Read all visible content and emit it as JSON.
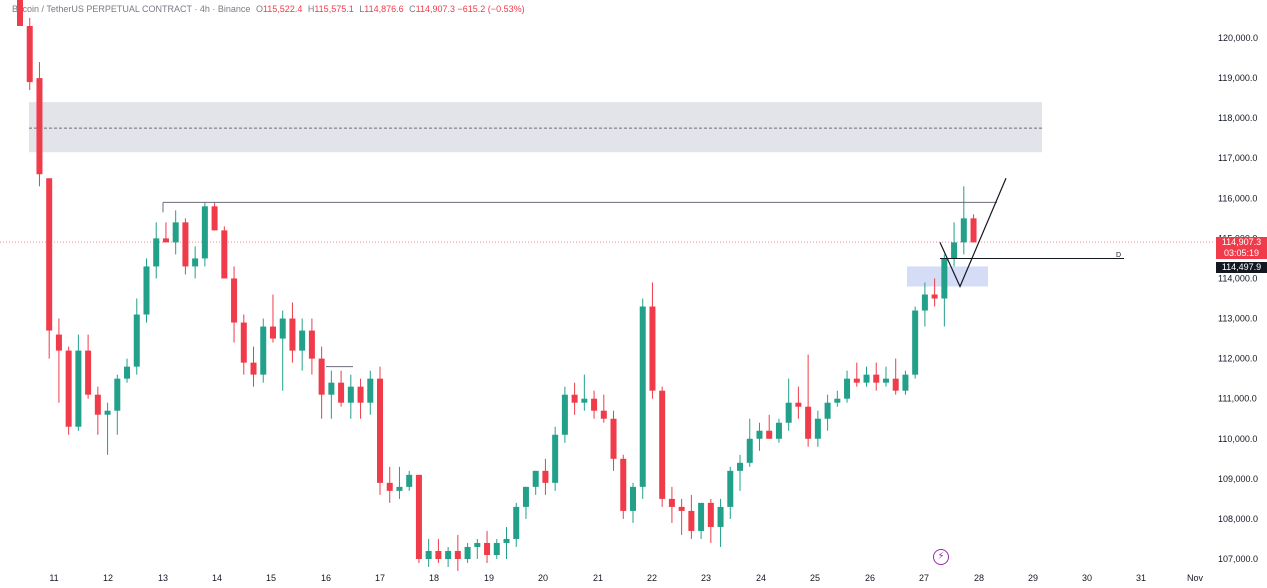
{
  "header": {
    "symbol": "Bitcoin / TetherUS PERPETUAL CONTRACT · 4h · Binance",
    "open_label": "O",
    "open": "115,522.4",
    "high_label": "H",
    "high": "115,575.1",
    "low_label": "L",
    "low": "114,876.6",
    "close_label": "C",
    "close": "114,907.3",
    "change": "−615.2 (−0.53%)"
  },
  "price_tag": {
    "price": "114,907.3",
    "countdown": "03:05:19",
    "level": "114,497.9"
  },
  "flag_label": "D",
  "colors": {
    "up": "#22a08a",
    "down": "#ef3b4a",
    "zone": "#e3e4ea",
    "demand": "#d4dcf6"
  },
  "chart_data": {
    "type": "candlestick",
    "title": "",
    "xlabel": "",
    "ylabel": "",
    "ylim": [
      106700,
      121000
    ],
    "y_ticks": [
      "107,000.0",
      "108,000.0",
      "109,000.0",
      "110,000.0",
      "111,000.0",
      "112,000.0",
      "113,000.0",
      "114,000.0",
      "115,000.0",
      "116,000.0",
      "117,000.0",
      "118,000.0",
      "119,000.0",
      "120,000.0"
    ],
    "x_ticks": [
      "11",
      "12",
      "13",
      "14",
      "15",
      "16",
      "17",
      "18",
      "19",
      "20",
      "21",
      "22",
      "23",
      "24",
      "25",
      "26",
      "27",
      "28",
      "29",
      "30",
      "31",
      "Nov"
    ],
    "candles": [
      [
        121000,
        121000,
        120300,
        120300
      ],
      [
        120300,
        120500,
        118700,
        118900
      ],
      [
        119000,
        119400,
        116300,
        116600
      ],
      [
        116500,
        116500,
        112000,
        112700
      ],
      [
        112600,
        113000,
        110900,
        112200
      ],
      [
        112200,
        112300,
        110100,
        110300
      ],
      [
        110300,
        112600,
        110200,
        112200
      ],
      [
        112200,
        112600,
        111000,
        111100
      ],
      [
        111100,
        111300,
        110100,
        110600
      ],
      [
        110600,
        110900,
        109600,
        110700
      ],
      [
        110700,
        111600,
        110100,
        111500
      ],
      [
        111500,
        112000,
        111400,
        111800
      ],
      [
        111800,
        113500,
        111600,
        113100
      ],
      [
        113100,
        114500,
        112900,
        114300
      ],
      [
        114300,
        115400,
        114000,
        115000
      ],
      [
        115000,
        115400,
        114900,
        114900
      ],
      [
        114900,
        115700,
        114600,
        115400
      ],
      [
        115400,
        115500,
        114100,
        114300
      ],
      [
        114300,
        114800,
        114000,
        114500
      ],
      [
        114500,
        115900,
        114300,
        115800
      ],
      [
        115800,
        115900,
        115200,
        115200
      ],
      [
        115200,
        115300,
        114000,
        114000
      ],
      [
        114000,
        114300,
        112400,
        112900
      ],
      [
        112900,
        113100,
        111600,
        111900
      ],
      [
        111900,
        112300,
        111300,
        111600
      ],
      [
        111600,
        113000,
        111400,
        112800
      ],
      [
        112800,
        113600,
        112400,
        112500
      ],
      [
        112500,
        113200,
        111200,
        113000
      ],
      [
        113000,
        113400,
        111900,
        112200
      ],
      [
        112200,
        113000,
        111700,
        112700
      ],
      [
        112700,
        113000,
        111600,
        112000
      ],
      [
        112000,
        112300,
        110500,
        111100
      ],
      [
        111100,
        111700,
        110500,
        111400
      ],
      [
        111400,
        111700,
        110800,
        110900
      ],
      [
        110900,
        111600,
        110500,
        111300
      ],
      [
        111300,
        111500,
        110500,
        110900
      ],
      [
        110900,
        111700,
        110600,
        111500
      ],
      [
        111500,
        111800,
        108600,
        108900
      ],
      [
        108900,
        109300,
        108400,
        108700
      ],
      [
        108700,
        109300,
        108500,
        108800
      ],
      [
        108800,
        109200,
        108700,
        109100
      ],
      [
        109100,
        109100,
        106900,
        107000
      ],
      [
        107000,
        107500,
        106800,
        107200
      ],
      [
        107200,
        107500,
        106900,
        107000
      ],
      [
        107000,
        107300,
        106800,
        107200
      ],
      [
        107200,
        107600,
        106700,
        107000
      ],
      [
        107000,
        107400,
        106900,
        107300
      ],
      [
        107300,
        107500,
        107000,
        107400
      ],
      [
        107400,
        107700,
        106900,
        107100
      ],
      [
        107100,
        107500,
        107000,
        107400
      ],
      [
        107400,
        107800,
        107000,
        107500
      ],
      [
        107500,
        108400,
        107300,
        108300
      ],
      [
        108300,
        108800,
        108000,
        108800
      ],
      [
        108800,
        109200,
        108600,
        109200
      ],
      [
        109200,
        109500,
        108600,
        108900
      ],
      [
        108900,
        110300,
        108700,
        110100
      ],
      [
        110100,
        111300,
        109900,
        111100
      ],
      [
        111100,
        111400,
        110600,
        110900
      ],
      [
        110900,
        111600,
        110700,
        111000
      ],
      [
        111000,
        111200,
        110500,
        110700
      ],
      [
        110700,
        111100,
        110400,
        110500
      ],
      [
        110500,
        110700,
        109200,
        109500
      ],
      [
        109500,
        109600,
        108000,
        108200
      ],
      [
        108200,
        108900,
        107900,
        108800
      ],
      [
        108800,
        113500,
        108500,
        113300
      ],
      [
        113300,
        113900,
        111000,
        111200
      ],
      [
        111200,
        111300,
        108300,
        108500
      ],
      [
        108500,
        108800,
        107900,
        108300
      ],
      [
        108300,
        108500,
        107600,
        108200
      ],
      [
        108200,
        108600,
        107500,
        107700
      ],
      [
        107700,
        108400,
        107500,
        108400
      ],
      [
        108400,
        108500,
        107400,
        107800
      ],
      [
        107800,
        108500,
        107300,
        108300
      ],
      [
        108300,
        109300,
        108000,
        109200
      ],
      [
        109200,
        109600,
        108700,
        109400
      ],
      [
        109400,
        110500,
        109300,
        110000
      ],
      [
        110000,
        110400,
        109700,
        110200
      ],
      [
        110200,
        110600,
        110000,
        110000
      ],
      [
        110000,
        110500,
        109900,
        110400
      ],
      [
        110400,
        111500,
        110200,
        110900
      ],
      [
        110900,
        111300,
        110500,
        110800
      ],
      [
        110800,
        112100,
        109800,
        110000
      ],
      [
        110000,
        110700,
        109800,
        110500
      ],
      [
        110500,
        111100,
        110200,
        110900
      ],
      [
        110900,
        111200,
        110800,
        111000
      ],
      [
        111000,
        111700,
        110900,
        111500
      ],
      [
        111500,
        111900,
        111300,
        111400
      ],
      [
        111400,
        111800,
        111300,
        111600
      ],
      [
        111600,
        111900,
        111200,
        111400
      ],
      [
        111400,
        111800,
        111300,
        111500
      ],
      [
        111500,
        112000,
        111100,
        111200
      ],
      [
        111200,
        111700,
        111100,
        111600
      ],
      [
        111600,
        113300,
        111500,
        113200
      ],
      [
        113200,
        113900,
        112800,
        113600
      ],
      [
        113600,
        114000,
        113300,
        113500
      ],
      [
        113500,
        114600,
        112800,
        114500
      ],
      [
        114500,
        115400,
        114300,
        114900
      ],
      [
        114900,
        116300,
        114600,
        115500
      ],
      [
        115500,
        115600,
        114900,
        114900
      ]
    ]
  }
}
